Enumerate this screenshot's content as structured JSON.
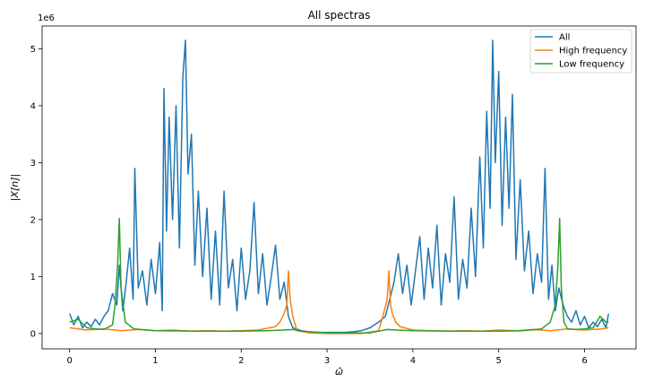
{
  "chart_data": {
    "type": "line",
    "title": "All spectras",
    "xlabel": "ω̂",
    "ylabel": "|X[n]|",
    "y_scale_label": "1e6",
    "xlim": [
      -0.32,
      6.6
    ],
    "ylim": [
      -0.27,
      5.4
    ],
    "y_unit_multiplier": 1000000,
    "x_ticks": [
      0,
      1,
      2,
      3,
      4,
      5,
      6
    ],
    "x_tick_labels": [
      "0",
      "1",
      "2",
      "3",
      "4",
      "5",
      "6"
    ],
    "y_ticks": [
      0,
      1,
      2,
      3,
      4,
      5
    ],
    "y_tick_labels": [
      "0",
      "1",
      "2",
      "3",
      "4",
      "5"
    ],
    "grid": false,
    "legend_position": "top-right",
    "series": [
      {
        "name": "All",
        "color": "#1f77b4",
        "x": [
          0.0,
          0.05,
          0.1,
          0.15,
          0.2,
          0.25,
          0.3,
          0.35,
          0.4,
          0.45,
          0.5,
          0.55,
          0.58,
          0.62,
          0.66,
          0.7,
          0.74,
          0.76,
          0.8,
          0.85,
          0.9,
          0.95,
          1.0,
          1.05,
          1.08,
          1.1,
          1.13,
          1.16,
          1.2,
          1.24,
          1.28,
          1.32,
          1.35,
          1.38,
          1.42,
          1.46,
          1.5,
          1.55,
          1.6,
          1.65,
          1.7,
          1.75,
          1.8,
          1.85,
          1.9,
          1.95,
          2.0,
          2.05,
          2.1,
          2.15,
          2.2,
          2.25,
          2.3,
          2.35,
          2.4,
          2.45,
          2.5,
          2.55,
          2.6,
          2.7,
          2.8,
          2.9,
          3.0,
          3.1,
          3.2,
          3.3,
          3.4,
          3.5,
          3.6,
          3.68,
          3.73,
          3.78,
          3.83,
          3.88,
          3.93,
          3.98,
          4.03,
          4.08,
          4.13,
          4.18,
          4.23,
          4.28,
          4.33,
          4.38,
          4.43,
          4.48,
          4.53,
          4.58,
          4.63,
          4.68,
          4.73,
          4.78,
          4.82,
          4.86,
          4.9,
          4.93,
          4.96,
          5.0,
          5.04,
          5.08,
          5.12,
          5.16,
          5.2,
          5.25,
          5.3,
          5.35,
          5.4,
          5.45,
          5.5,
          5.54,
          5.58,
          5.62,
          5.66,
          5.7,
          5.75,
          5.8,
          5.85,
          5.9,
          5.95,
          6.0,
          6.05,
          6.1,
          6.15,
          6.2,
          6.25,
          6.28
        ],
        "values": [
          0.35,
          0.15,
          0.3,
          0.1,
          0.2,
          0.12,
          0.25,
          0.15,
          0.3,
          0.4,
          0.7,
          0.5,
          1.2,
          0.4,
          0.9,
          1.5,
          0.6,
          2.9,
          0.8,
          1.1,
          0.5,
          1.3,
          0.7,
          1.6,
          0.4,
          4.3,
          1.8,
          3.8,
          2.0,
          4.0,
          1.5,
          4.5,
          5.15,
          2.8,
          3.5,
          1.2,
          2.5,
          1.0,
          2.2,
          0.6,
          1.8,
          0.5,
          2.5,
          0.8,
          1.3,
          0.4,
          1.5,
          0.6,
          1.1,
          2.3,
          0.7,
          1.4,
          0.5,
          1.0,
          1.55,
          0.6,
          0.9,
          0.3,
          0.1,
          0.05,
          0.03,
          0.02,
          0.02,
          0.02,
          0.02,
          0.03,
          0.05,
          0.1,
          0.2,
          0.3,
          0.6,
          0.9,
          1.4,
          0.7,
          1.2,
          0.5,
          1.1,
          1.7,
          0.6,
          1.5,
          0.8,
          1.9,
          0.5,
          1.4,
          0.9,
          2.4,
          0.6,
          1.3,
          0.8,
          2.2,
          1.0,
          3.1,
          1.5,
          3.9,
          2.2,
          5.15,
          3.0,
          4.6,
          1.9,
          3.8,
          2.2,
          4.2,
          1.3,
          2.7,
          1.1,
          1.8,
          0.7,
          1.4,
          0.9,
          2.9,
          0.6,
          1.2,
          0.4,
          0.8,
          0.5,
          0.3,
          0.2,
          0.4,
          0.15,
          0.3,
          0.1,
          0.2,
          0.12,
          0.25,
          0.1,
          0.35
        ]
      },
      {
        "name": "High frequency",
        "color": "#ff7f0e",
        "x": [
          0.0,
          0.2,
          0.4,
          0.6,
          0.8,
          1.0,
          1.2,
          1.4,
          1.6,
          1.8,
          2.0,
          2.2,
          2.4,
          2.45,
          2.5,
          2.53,
          2.55,
          2.57,
          2.6,
          2.65,
          2.8,
          3.0,
          3.2,
          3.4,
          3.6,
          3.65,
          3.7,
          3.72,
          3.74,
          3.76,
          3.8,
          3.85,
          4.0,
          4.2,
          4.4,
          4.6,
          4.8,
          5.0,
          5.2,
          5.4,
          5.6,
          5.8,
          6.0,
          6.2,
          6.28
        ],
        "values": [
          0.1,
          0.06,
          0.08,
          0.05,
          0.07,
          0.05,
          0.06,
          0.04,
          0.05,
          0.04,
          0.05,
          0.06,
          0.12,
          0.2,
          0.35,
          0.5,
          1.1,
          0.6,
          0.3,
          0.05,
          0.01,
          0.0,
          0.0,
          0.0,
          0.05,
          0.3,
          0.6,
          1.1,
          0.5,
          0.35,
          0.2,
          0.12,
          0.06,
          0.05,
          0.04,
          0.05,
          0.04,
          0.06,
          0.05,
          0.07,
          0.05,
          0.08,
          0.06,
          0.08,
          0.1
        ]
      },
      {
        "name": "Low frequency",
        "color": "#2ca02c",
        "x": [
          0.0,
          0.1,
          0.2,
          0.3,
          0.4,
          0.5,
          0.53,
          0.56,
          0.58,
          0.6,
          0.65,
          0.75,
          1.0,
          1.5,
          2.0,
          2.3,
          2.5,
          2.6,
          2.7,
          3.0,
          3.5,
          3.6,
          3.7,
          3.8,
          4.0,
          4.5,
          5.0,
          5.28,
          5.5,
          5.6,
          5.66,
          5.69,
          5.71,
          5.73,
          5.76,
          5.8,
          5.9,
          6.0,
          6.1,
          6.18,
          6.25,
          6.28
        ],
        "values": [
          0.2,
          0.25,
          0.1,
          0.08,
          0.07,
          0.15,
          0.5,
          1.2,
          2.02,
          0.8,
          0.2,
          0.08,
          0.05,
          0.04,
          0.04,
          0.05,
          0.06,
          0.07,
          0.04,
          0.01,
          0.01,
          0.04,
          0.07,
          0.06,
          0.05,
          0.04,
          0.04,
          0.05,
          0.08,
          0.2,
          0.5,
          1.2,
          2.02,
          0.8,
          0.2,
          0.08,
          0.07,
          0.08,
          0.1,
          0.3,
          0.2,
          0.2
        ]
      }
    ]
  }
}
